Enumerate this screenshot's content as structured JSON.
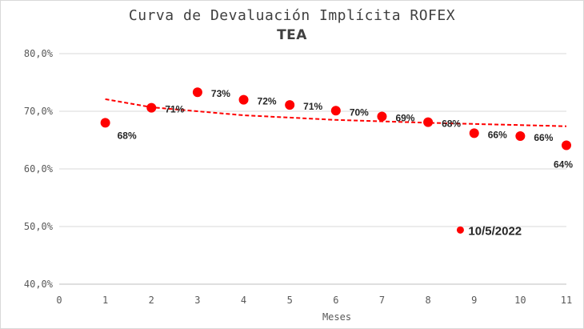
{
  "chart_data": {
    "type": "scatter",
    "title": "Curva de Devaluación Implícita ROFEX",
    "subtitle": "TEA",
    "xlabel": "Meses",
    "ylabel": "",
    "xlim": [
      0,
      11
    ],
    "ylim": [
      40,
      80
    ],
    "x_ticks": [
      "0",
      "1",
      "2",
      "3",
      "4",
      "5",
      "6",
      "7",
      "8",
      "9",
      "10",
      "11"
    ],
    "y_ticks": [
      "40,0%",
      "50,0%",
      "60,0%",
      "70,0%",
      "80,0%"
    ],
    "grid": "horizontal",
    "legend": "none",
    "series": [
      {
        "x": [
          1,
          2,
          3,
          4,
          5,
          6,
          7,
          8,
          9,
          10,
          11
        ],
        "y": [
          68.0,
          70.6,
          73.3,
          72.0,
          71.1,
          70.1,
          69.1,
          68.1,
          66.2,
          65.7,
          64.1
        ],
        "labels": [
          "68%",
          "71%",
          "73%",
          "72%",
          "71%",
          "70%",
          "69%",
          "68%",
          "66%",
          "66%",
          "64%"
        ],
        "color": "#ff0000"
      }
    ],
    "trendline": {
      "type": "logarithmic",
      "color": "#ff0000",
      "style": "dashed",
      "points": [
        [
          1,
          72.1
        ],
        [
          2,
          70.7
        ],
        [
          4,
          69.3
        ],
        [
          6,
          68.5
        ],
        [
          8,
          68.0
        ],
        [
          11,
          67.4
        ]
      ]
    },
    "legend_point": {
      "label": "10/5/2022",
      "x": 8.7,
      "y": 49.4
    }
  }
}
